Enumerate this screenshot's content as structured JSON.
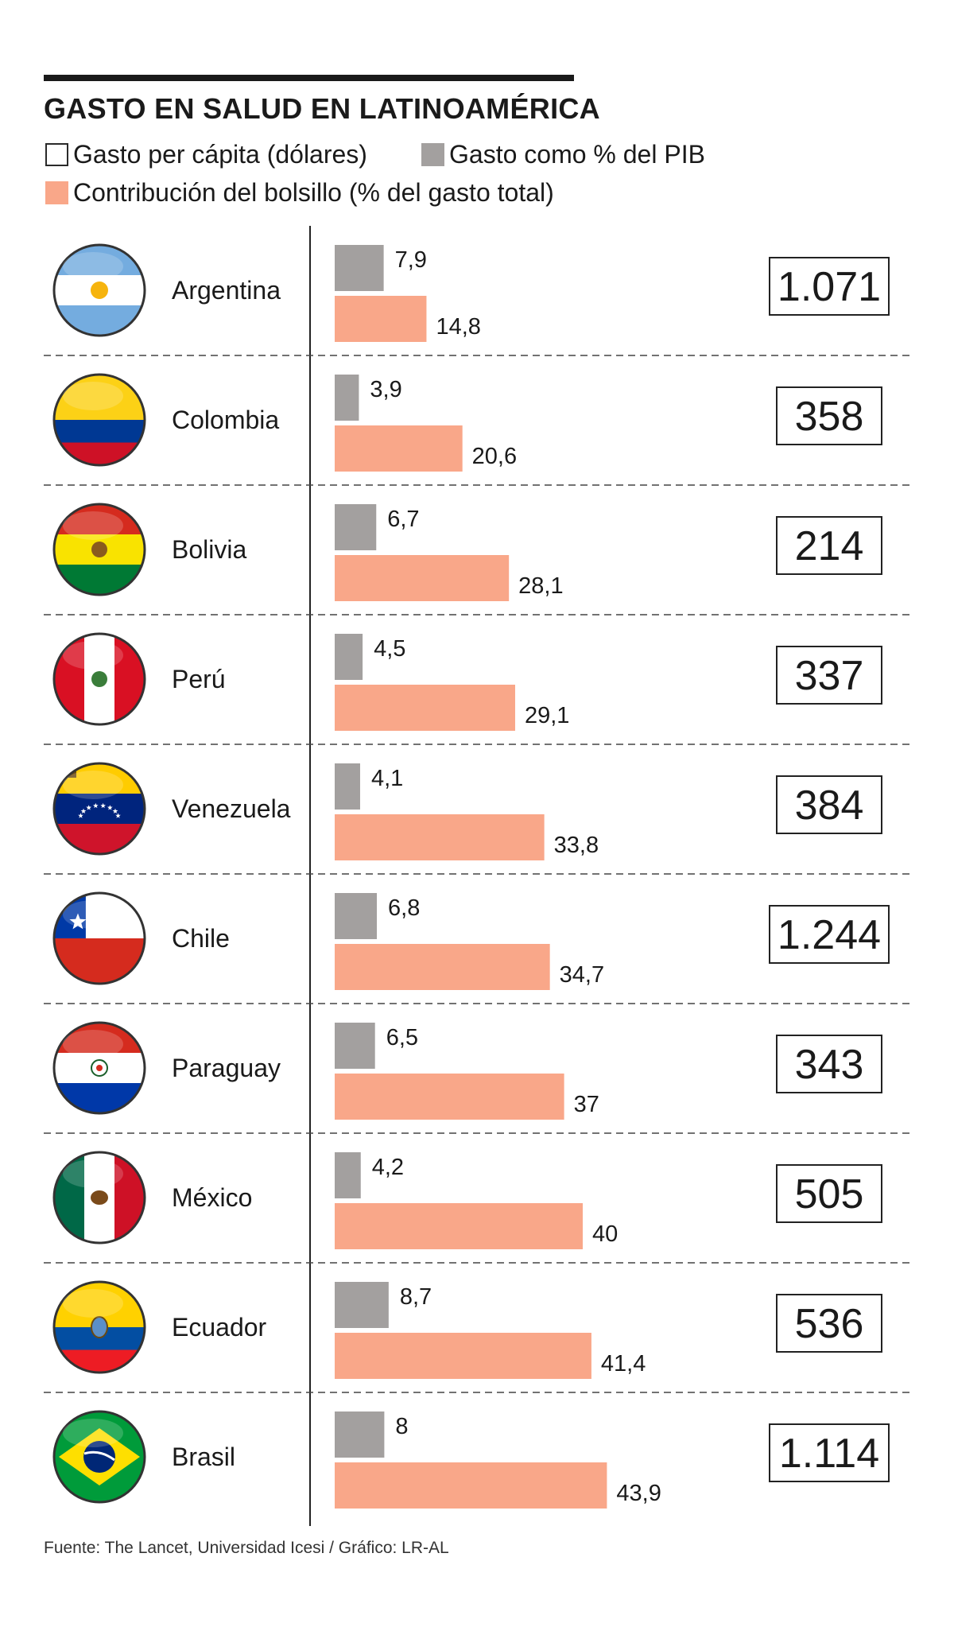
{
  "chart_data": {
    "type": "bar",
    "title": "GASTO EN SALUD EN LATINOAMÉRICA",
    "legend": [
      {
        "label": "Gasto per cápita (dólares)",
        "color": "#ffffff"
      },
      {
        "label": "Gasto como % del PIB",
        "color": "#a3a09f"
      },
      {
        "label": "Contribución del bolsillo (% del gasto total)",
        "color": "#f9a789"
      }
    ],
    "categories": [
      "Argentina",
      "Colombia",
      "Bolivia",
      "Perú",
      "Venezuela",
      "Chile",
      "Paraguay",
      "México",
      "Ecuador",
      "Brasil"
    ],
    "series": [
      {
        "name": "Gasto como % del PIB",
        "values": [
          7.9,
          3.9,
          6.7,
          4.5,
          4.1,
          6.8,
          6.5,
          4.2,
          8.7,
          8
        ],
        "labels": [
          "7,9",
          "3,9",
          "6,7",
          "4,5",
          "4,1",
          "6,8",
          "6,5",
          "4,2",
          "8,7",
          "8"
        ]
      },
      {
        "name": "Contribución del bolsillo (% del gasto total)",
        "values": [
          14.8,
          20.6,
          28.1,
          29.1,
          33.8,
          34.7,
          37,
          40,
          41.4,
          43.9
        ],
        "labels": [
          "14,8",
          "20,6",
          "28,1",
          "29,1",
          "33,8",
          "34,7",
          "37",
          "40",
          "41,4",
          "43,9"
        ]
      },
      {
        "name": "Gasto per cápita (dólares)",
        "values": [
          1071,
          358,
          214,
          337,
          384,
          1244,
          343,
          505,
          536,
          1114
        ],
        "labels": [
          "1.071",
          "358",
          "214",
          "337",
          "384",
          "1.244",
          "343",
          "505",
          "536",
          "1.114"
        ]
      }
    ],
    "source": "Fuente: The Lancet, Universidad Icesi / Gráfico: LR-AL"
  },
  "colors": {
    "gray": "#a3a09f",
    "salmon": "#f9a789",
    "dark": "#1a1a1a"
  },
  "flags": [
    "argentina-flag-icon",
    "colombia-flag-icon",
    "bolivia-flag-icon",
    "peru-flag-icon",
    "venezuela-flag-icon",
    "chile-flag-icon",
    "paraguay-flag-icon",
    "mexico-flag-icon",
    "ecuador-flag-icon",
    "brasil-flag-icon"
  ]
}
